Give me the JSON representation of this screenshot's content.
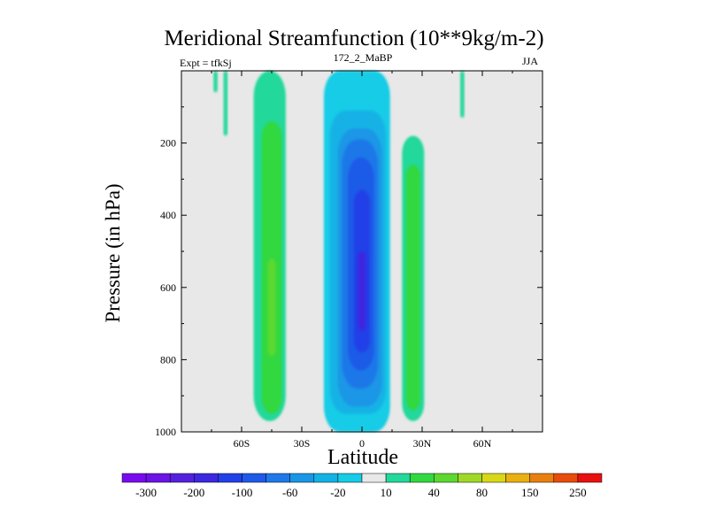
{
  "title": "Meridional Streamfunction (10**9kg/m-2)",
  "subtitle_left": "Expt = tfkSj",
  "subtitle_center": "172_2_MaBP",
  "subtitle_right": "JJA",
  "chart_data": {
    "type": "heatmap",
    "xlabel": "Latitude",
    "ylabel": "Pressure (in hPa)",
    "x_ticks": [
      {
        "value": -60,
        "label": "60S"
      },
      {
        "value": -30,
        "label": "30S"
      },
      {
        "value": 0,
        "label": "0"
      },
      {
        "value": 30,
        "label": "30N"
      },
      {
        "value": 60,
        "label": "60N"
      }
    ],
    "y_ticks": [
      {
        "value": 200,
        "label": "200"
      },
      {
        "value": 400,
        "label": "400"
      },
      {
        "value": 600,
        "label": "600"
      },
      {
        "value": 800,
        "label": "800"
      },
      {
        "value": 1000,
        "label": "1000"
      }
    ],
    "xlim": [
      -90,
      90
    ],
    "ylim": [
      1000,
      0
    ],
    "levels": [
      -300,
      -250,
      -200,
      -150,
      -100,
      -80,
      -60,
      -40,
      -20,
      -10,
      10,
      20,
      40,
      60,
      80,
      100,
      150,
      200,
      250,
      300
    ],
    "colorbar_labels": [
      "-300",
      "-200",
      "-100",
      "-60",
      "-20",
      "10",
      "40",
      "80",
      "150",
      "250"
    ],
    "colors": [
      "#7a0aee",
      "#6a14e6",
      "#5520dd",
      "#3c28e0",
      "#2240e8",
      "#1e5ae8",
      "#1e78e8",
      "#1a96e6",
      "#12b2e6",
      "#16cce6",
      "#e8e8e8",
      "#22d89a",
      "#32d840",
      "#5cd830",
      "#a0d828",
      "#d8d818",
      "#e8b010",
      "#e88010",
      "#e84c0c",
      "#e81010"
    ],
    "bands": [
      {
        "level": "-10",
        "color": "#16cce6",
        "lat": [
          -19,
          14
        ],
        "p": [
          0,
          1000
        ]
      },
      {
        "level": "-20",
        "color": "#12b2e6",
        "lat": [
          -16,
          12
        ],
        "p": [
          110,
          950
        ]
      },
      {
        "level": "-40",
        "color": "#1a96e6",
        "lat": [
          -12,
          10
        ],
        "p": [
          160,
          930
        ]
      },
      {
        "level": "-60",
        "color": "#1e78e8",
        "lat": [
          -10,
          8
        ],
        "p": [
          190,
          880
        ]
      },
      {
        "level": "-80",
        "color": "#1e5ae8",
        "lat": [
          -7,
          6
        ],
        "p": [
          240,
          830
        ]
      },
      {
        "level": "-100",
        "color": "#2240e8",
        "lat": [
          -4,
          4
        ],
        "p": [
          330,
          780
        ]
      },
      {
        "level": "-150",
        "color": "#3c28e0",
        "lat": [
          -2,
          2
        ],
        "p": [
          500,
          720
        ]
      },
      {
        "level": "10",
        "color": "#22d89a",
        "lat": [
          -54,
          -38
        ],
        "p": [
          0,
          970
        ]
      },
      {
        "level": "20",
        "color": "#32d840",
        "lat": [
          -50,
          -40
        ],
        "p": [
          140,
          950
        ]
      },
      {
        "level": "40",
        "color": "#5cd830",
        "lat": [
          -47,
          -43
        ],
        "p": [
          520,
          790
        ]
      },
      {
        "level": "10",
        "color": "#22d89a",
        "lat": [
          20,
          31
        ],
        "p": [
          180,
          970
        ]
      },
      {
        "level": "20",
        "color": "#32d840",
        "lat": [
          22,
          29
        ],
        "p": [
          260,
          940
        ]
      },
      {
        "level": "10",
        "color": "#22d89a",
        "lat": [
          -74,
          -72
        ],
        "p": [
          0,
          60
        ]
      },
      {
        "level": "10",
        "color": "#22d89a",
        "lat": [
          -69,
          -67
        ],
        "p": [
          0,
          180
        ]
      },
      {
        "level": "10",
        "color": "#22d89a",
        "lat": [
          49,
          51
        ],
        "p": [
          0,
          130
        ]
      }
    ]
  }
}
